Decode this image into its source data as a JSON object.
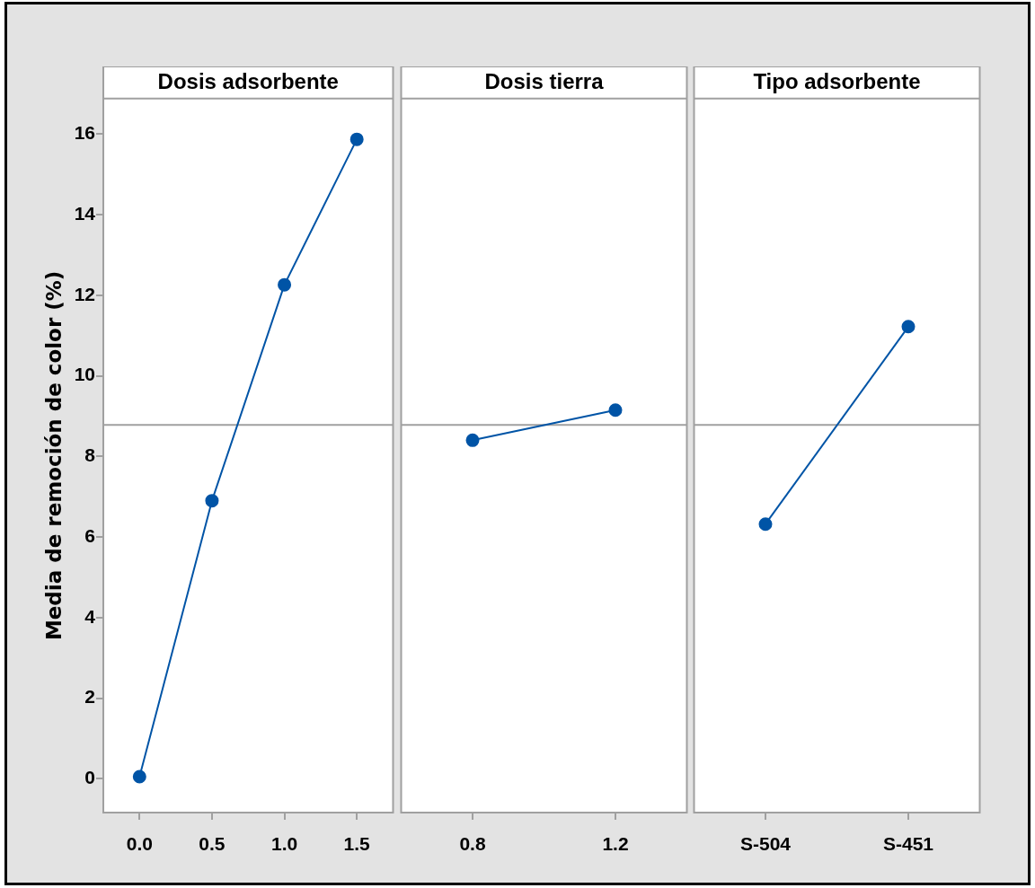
{
  "chart_data": [
    {
      "type": "line",
      "title": "Dosis adsorbente",
      "ylabel": "Media de remoción de color (%)",
      "categories": [
        "0.0",
        "0.5",
        "1.0",
        "1.5"
      ],
      "values": [
        0.05,
        6.9,
        12.26,
        15.87
      ],
      "color": "#0054a6",
      "ylim": [
        -0.84,
        16.88
      ],
      "yticks": [
        0,
        2,
        4,
        6,
        8,
        10,
        12,
        14,
        16
      ],
      "ref_lines": [
        {
          "axis": "y",
          "value": 8.78,
          "color": "#a0a0a0"
        }
      ],
      "marker": "circle"
    },
    {
      "type": "line",
      "title": "Dosis tierra",
      "categories": [
        "0.8",
        "1.2"
      ],
      "values": [
        8.4,
        9.15
      ],
      "color": "#0054a6",
      "ylim": [
        -0.84,
        16.88
      ],
      "yticks": [
        0,
        2,
        4,
        6,
        8,
        10,
        12,
        14,
        16
      ],
      "ref_lines": [
        {
          "axis": "y",
          "value": 8.78,
          "color": "#a0a0a0"
        }
      ],
      "marker": "circle",
      "tick_labels": "x"
    },
    {
      "type": "line",
      "title": "Tipo adsorbente",
      "categories": [
        "S-504",
        "S-451"
      ],
      "values": [
        6.32,
        11.22
      ],
      "color": "#0054a6",
      "ylim": [
        -0.84,
        16.88
      ],
      "yticks": [
        0,
        2,
        4,
        6,
        8,
        10,
        12,
        14,
        16
      ],
      "ref_lines": [
        {
          "axis": "y",
          "value": 8.78,
          "color": "#a0a0a0"
        }
      ],
      "marker": "circle",
      "tick_labels": "x"
    }
  ]
}
